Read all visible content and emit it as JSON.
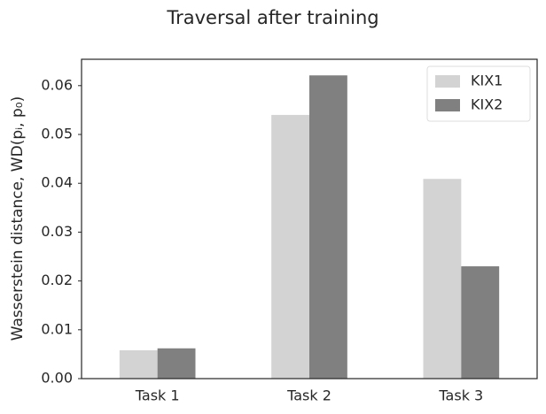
{
  "chart_data": {
    "type": "bar",
    "title": "Traversal after training",
    "ylabel": "Wasserstein distance, WD(pᵢ, p₀)",
    "categories": [
      "Task 1",
      "Task 2",
      "Task 3"
    ],
    "series": [
      {
        "name": "KIX1",
        "color": "#d3d3d3",
        "values": [
          0.0058,
          0.054,
          0.0409
        ]
      },
      {
        "name": "KIX2",
        "color": "#808080",
        "values": [
          0.0062,
          0.0621,
          0.023
        ]
      }
    ],
    "ylim": [
      0,
      0.0654
    ],
    "yticks": [
      {
        "value": 0,
        "label": "0.00"
      },
      {
        "value": 0.01,
        "label": "0.01"
      },
      {
        "value": 0.02,
        "label": "0.02"
      },
      {
        "value": 0.03,
        "label": "0.03"
      },
      {
        "value": 0.04,
        "label": "0.04"
      },
      {
        "value": 0.05,
        "label": "0.05"
      },
      {
        "value": 0.06,
        "label": "0.06"
      }
    ],
    "grid": false,
    "legend": "upper right"
  }
}
